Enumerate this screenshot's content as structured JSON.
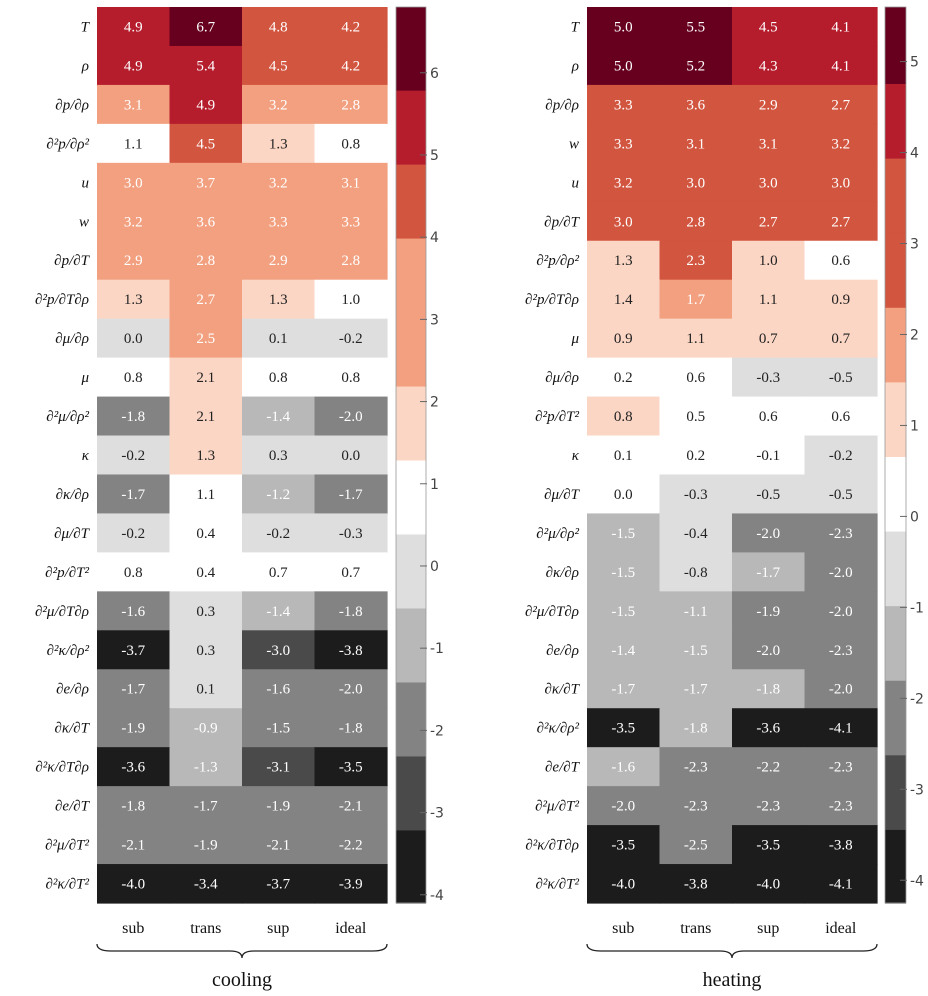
{
  "chart_data": [
    {
      "type": "heatmap",
      "group_label": "cooling",
      "columns": [
        "sub",
        "trans",
        "sup",
        "ideal"
      ],
      "rows": [
        {
          "label": "T",
          "values": [
            4.9,
            6.7,
            4.8,
            4.2
          ]
        },
        {
          "label": "ρ",
          "values": [
            4.9,
            5.4,
            4.5,
            4.2
          ]
        },
        {
          "label": "∂p/∂ρ",
          "values": [
            3.1,
            4.9,
            3.2,
            2.8
          ]
        },
        {
          "label": "∂²p/∂ρ²",
          "values": [
            1.1,
            4.5,
            1.3,
            0.8
          ]
        },
        {
          "label": "u",
          "values": [
            3.0,
            3.7,
            3.2,
            3.1
          ]
        },
        {
          "label": "w",
          "values": [
            3.2,
            3.6,
            3.3,
            3.3
          ]
        },
        {
          "label": "∂p/∂T",
          "values": [
            2.9,
            2.8,
            2.9,
            2.8
          ]
        },
        {
          "label": "∂²p/∂T∂ρ",
          "values": [
            1.3,
            2.7,
            1.3,
            1.0
          ]
        },
        {
          "label": "∂μ/∂ρ",
          "values": [
            -0.0,
            2.5,
            0.1,
            -0.2
          ]
        },
        {
          "label": "μ",
          "values": [
            0.8,
            2.1,
            0.8,
            0.8
          ]
        },
        {
          "label": "∂²μ/∂ρ²",
          "values": [
            -1.8,
            2.1,
            -1.4,
            -2.0
          ]
        },
        {
          "label": "κ",
          "values": [
            -0.2,
            1.3,
            0.3,
            0.0
          ]
        },
        {
          "label": "∂κ/∂ρ",
          "values": [
            -1.7,
            1.1,
            -1.2,
            -1.7
          ]
        },
        {
          "label": "∂μ/∂T",
          "values": [
            -0.2,
            0.4,
            -0.2,
            -0.3
          ]
        },
        {
          "label": "∂²p/∂T²",
          "values": [
            0.8,
            0.4,
            0.7,
            0.7
          ]
        },
        {
          "label": "∂²μ/∂T∂ρ",
          "values": [
            -1.6,
            0.3,
            -1.4,
            -1.8
          ]
        },
        {
          "label": "∂²κ/∂ρ²",
          "values": [
            -3.7,
            0.3,
            -3.0,
            -3.8
          ]
        },
        {
          "label": "∂e/∂ρ",
          "values": [
            -1.7,
            0.1,
            -1.6,
            -2.0
          ]
        },
        {
          "label": "∂κ/∂T",
          "values": [
            -1.9,
            -0.9,
            -1.5,
            -1.8
          ]
        },
        {
          "label": "∂²κ/∂T∂ρ",
          "values": [
            -3.6,
            -1.3,
            -3.1,
            -3.5
          ]
        },
        {
          "label": "∂e/∂T",
          "values": [
            -1.8,
            -1.7,
            -1.9,
            -2.1
          ]
        },
        {
          "label": "∂²μ/∂T²",
          "values": [
            -2.1,
            -1.9,
            -2.1,
            -2.2
          ]
        },
        {
          "label": "∂²κ/∂T²",
          "values": [
            -4.0,
            -3.4,
            -3.7,
            -3.9
          ]
        }
      ],
      "colorbar": {
        "range": [
          -4.1,
          6.8
        ],
        "ticks": [
          "-4",
          "-3",
          "-2",
          "-1",
          "0",
          "1",
          "2",
          "3",
          "4",
          "5",
          "6"
        ],
        "tick_values": [
          -4,
          -3,
          -2,
          -1,
          0,
          1,
          2,
          3,
          4,
          5,
          6
        ],
        "bins": [
          {
            "min": -4.1,
            "max": -3.21,
            "color": "#1c1c1c"
          },
          {
            "min": -3.21,
            "max": -2.31,
            "color": "#4a4a4a"
          },
          {
            "min": -2.31,
            "max": -1.41,
            "color": "#838383"
          },
          {
            "min": -1.41,
            "max": -0.51,
            "color": "#b8b8b8"
          },
          {
            "min": -0.51,
            "max": 0.39,
            "color": "#dedede"
          },
          {
            "min": 0.39,
            "max": 1.29,
            "color": "#ffffff"
          },
          {
            "min": 1.29,
            "max": 2.19,
            "color": "#fbd6c4"
          },
          {
            "min": 2.19,
            "max": 3.09,
            "color": "#f2a07f"
          },
          {
            "min": 3.09,
            "max": 3.99,
            "color": "#f2a07f"
          },
          {
            "min": 3.99,
            "max": 4.89,
            "color": "#d2553f"
          },
          {
            "min": 4.89,
            "max": 5.79,
            "color": "#b51c2c"
          },
          {
            "min": 5.79,
            "max": 6.8,
            "color": "#67001f"
          }
        ]
      }
    },
    {
      "type": "heatmap",
      "group_label": "heating",
      "columns": [
        "sub",
        "trans",
        "sup",
        "ideal"
      ],
      "rows": [
        {
          "label": "T",
          "values": [
            5.0,
            5.5,
            4.5,
            4.1
          ]
        },
        {
          "label": "ρ",
          "values": [
            5.0,
            5.2,
            4.3,
            4.1
          ]
        },
        {
          "label": "∂p/∂ρ",
          "values": [
            3.3,
            3.6,
            2.9,
            2.7
          ]
        },
        {
          "label": "w",
          "values": [
            3.3,
            3.1,
            3.1,
            3.2
          ]
        },
        {
          "label": "u",
          "values": [
            3.2,
            3.0,
            3.0,
            3.0
          ]
        },
        {
          "label": "∂p/∂T",
          "values": [
            3.0,
            2.8,
            2.7,
            2.7
          ]
        },
        {
          "label": "∂²p/∂ρ²",
          "values": [
            1.3,
            2.3,
            1.0,
            0.6
          ]
        },
        {
          "label": "∂²p/∂T∂ρ",
          "values": [
            1.4,
            1.7,
            1.1,
            0.9
          ]
        },
        {
          "label": "μ",
          "values": [
            0.9,
            1.1,
            0.7,
            0.7
          ]
        },
        {
          "label": "∂μ/∂ρ",
          "values": [
            0.2,
            0.6,
            -0.3,
            -0.5
          ]
        },
        {
          "label": "∂²p/∂T²",
          "values": [
            0.8,
            0.5,
            0.6,
            0.6
          ]
        },
        {
          "label": "κ",
          "values": [
            0.1,
            0.2,
            -0.1,
            -0.2
          ]
        },
        {
          "label": "∂μ/∂T",
          "values": [
            -0.0,
            -0.3,
            -0.5,
            -0.5
          ]
        },
        {
          "label": "∂²μ/∂ρ²",
          "values": [
            -1.5,
            -0.4,
            -2.0,
            -2.3
          ]
        },
        {
          "label": "∂κ/∂ρ",
          "values": [
            -1.5,
            -0.8,
            -1.7,
            -2.0
          ]
        },
        {
          "label": "∂²μ/∂T∂ρ",
          "values": [
            -1.5,
            -1.1,
            -1.9,
            -2.0
          ]
        },
        {
          "label": "∂e/∂ρ",
          "values": [
            -1.4,
            -1.5,
            -2.0,
            -2.3
          ]
        },
        {
          "label": "∂κ/∂T",
          "values": [
            -1.7,
            -1.7,
            -1.8,
            -2.0
          ]
        },
        {
          "label": "∂²κ/∂ρ²",
          "values": [
            -3.5,
            -1.8,
            -3.6,
            -4.1
          ]
        },
        {
          "label": "∂e/∂T",
          "values": [
            -1.6,
            -2.3,
            -2.2,
            -2.3
          ]
        },
        {
          "label": "∂²μ/∂T²",
          "values": [
            -2.0,
            -2.3,
            -2.3,
            -2.3
          ]
        },
        {
          "label": "∂²κ/∂T∂ρ",
          "values": [
            -3.5,
            -2.5,
            -3.5,
            -3.8
          ]
        },
        {
          "label": "∂²κ/∂T²",
          "values": [
            -4.0,
            -3.8,
            -4.0,
            -4.1
          ]
        }
      ],
      "colorbar": {
        "range": [
          -4.25,
          5.6
        ],
        "ticks": [
          "-4",
          "-3",
          "-2",
          "-1",
          "0",
          "1",
          "2",
          "3",
          "4",
          "5"
        ],
        "tick_values": [
          -4,
          -3,
          -2,
          -1,
          0,
          1,
          2,
          3,
          4,
          5
        ],
        "bins": [
          {
            "min": -4.25,
            "max": -3.44,
            "color": "#1c1c1c"
          },
          {
            "min": -3.44,
            "max": -2.62,
            "color": "#4a4a4a"
          },
          {
            "min": -2.62,
            "max": -1.8,
            "color": "#838383"
          },
          {
            "min": -1.8,
            "max": -0.98,
            "color": "#b8b8b8"
          },
          {
            "min": -0.98,
            "max": -0.16,
            "color": "#dedede"
          },
          {
            "min": -0.16,
            "max": 0.66,
            "color": "#ffffff"
          },
          {
            "min": 0.66,
            "max": 1.48,
            "color": "#fbd6c4"
          },
          {
            "min": 1.48,
            "max": 2.3,
            "color": "#f2a07f"
          },
          {
            "min": 2.3,
            "max": 3.12,
            "color": "#d2553f"
          },
          {
            "min": 3.12,
            "max": 3.94,
            "color": "#d2553f"
          },
          {
            "min": 3.94,
            "max": 4.76,
            "color": "#b51c2c"
          },
          {
            "min": 4.76,
            "max": 5.6,
            "color": "#67001f"
          }
        ]
      }
    }
  ]
}
